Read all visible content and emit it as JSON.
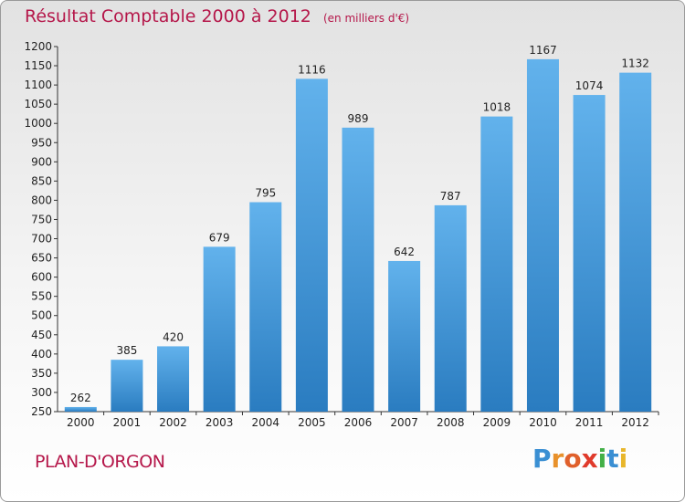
{
  "header": {
    "title": "Résultat Comptable 2000 à 2012",
    "unit": "(en milliers d'€)"
  },
  "footer": {
    "town": "PLAN-D'ORGON",
    "brand_letters": [
      {
        "ch": "P",
        "color": "#3a8fd3"
      },
      {
        "ch": "r",
        "color": "#e8912b"
      },
      {
        "ch": "o",
        "color": "#e0602b"
      },
      {
        "ch": "x",
        "color": "#e03a2b"
      },
      {
        "ch": "i",
        "color": "#43b047"
      },
      {
        "ch": "t",
        "color": "#3a8fd3"
      },
      {
        "ch": "i",
        "color": "#e8b62b"
      }
    ]
  },
  "colors": {
    "bar_top": "#62b2ec",
    "bar_bottom": "#2a7cc0",
    "title": "#b5174a"
  },
  "chart_data": {
    "type": "bar",
    "title": "Résultat Comptable 2000 à 2012",
    "subtitle": "(en milliers d'€)",
    "xlabel": "",
    "ylabel": "",
    "categories": [
      "2000",
      "2001",
      "2002",
      "2003",
      "2004",
      "2005",
      "2006",
      "2007",
      "2008",
      "2009",
      "2010",
      "2011",
      "2012"
    ],
    "values": [
      262,
      385,
      420,
      679,
      795,
      1116,
      989,
      642,
      787,
      1018,
      1167,
      1074,
      1132
    ],
    "ylim": [
      250,
      1200
    ],
    "ytick_step": 50,
    "grid": false,
    "legend": "none"
  }
}
